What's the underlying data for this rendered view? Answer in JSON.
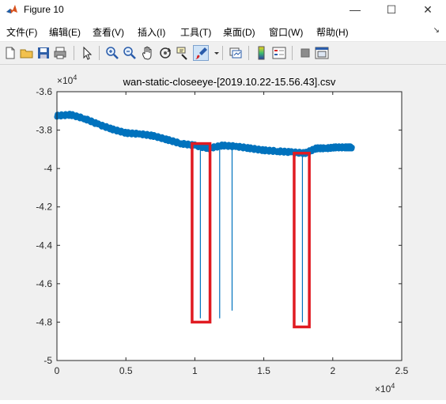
{
  "window": {
    "title": "Figure 10",
    "controls": {
      "minimize": "—",
      "maximize": "☐",
      "close": "✕"
    }
  },
  "menu": {
    "items": [
      "文件(F)",
      "编辑(E)",
      "查看(V)",
      "插入(I)",
      "工具(T)",
      "桌面(D)",
      "窗口(W)",
      "帮助(H)"
    ],
    "overflow_icon": "chevron-icon"
  },
  "toolbar": {
    "icons": [
      "new-figure-icon",
      "open-file-icon",
      "save-icon",
      "print-icon",
      "edit-plot-arrow-icon",
      "zoom-in-icon",
      "zoom-out-icon",
      "pan-hand-icon",
      "rotate-3d-icon",
      "data-cursor-icon",
      "brush-icon",
      "brush-dropdown-icon",
      "link-plot-icon",
      "colorbar-icon",
      "legend-icon",
      "hide-plot-tools-icon",
      "show-plot-tools-icon"
    ]
  },
  "chart_data": {
    "type": "line",
    "title": "wan-static-closeeye-[2019.10.22-15.56.43].csv",
    "xlabel": "",
    "ylabel": "",
    "x_exponent_label": "×10",
    "x_exponent": "4",
    "y_exponent_label": "×10",
    "y_exponent": "4",
    "xlim": [
      0,
      25000
    ],
    "ylim": [
      -50000,
      -36000
    ],
    "xticks": [
      0,
      5000,
      10000,
      15000,
      20000,
      25000
    ],
    "xtick_labels": [
      "0",
      "0.5",
      "1",
      "1.5",
      "2",
      "2.5"
    ],
    "yticks": [
      -36000,
      -38000,
      -40000,
      -42000,
      -44000,
      -46000,
      -48000,
      -50000
    ],
    "ytick_labels": [
      "-3.6",
      "-3.8",
      "-4",
      "-4.2",
      "-4.4",
      "-4.6",
      "-4.8",
      "-5"
    ],
    "grid": false,
    "series": [
      {
        "color": "#0072BD",
        "baseline_x": [
          0,
          1000,
          2000,
          3000,
          4000,
          5000,
          6000,
          7000,
          8000,
          9000,
          10000,
          11000,
          12000,
          13000,
          14000,
          15000,
          16000,
          17000,
          18000,
          18800,
          19500,
          20200,
          21000,
          21400
        ],
        "baseline_y": [
          -37250,
          -37200,
          -37400,
          -37700,
          -37950,
          -38150,
          -38200,
          -38300,
          -38500,
          -38700,
          -38800,
          -38950,
          -38800,
          -38850,
          -38950,
          -39050,
          -39100,
          -39150,
          -39200,
          -38950,
          -38950,
          -38900,
          -38900,
          -38900
        ]
      }
    ],
    "spikes": [
      {
        "x": 10400,
        "y_top": -38900,
        "y_bottom": -47800
      },
      {
        "x": 11800,
        "y_top": -38900,
        "y_bottom": -47800
      },
      {
        "x": 12700,
        "y_top": -38900,
        "y_bottom": -47400
      },
      {
        "x": 17800,
        "y_top": -39100,
        "y_bottom": -48000
      }
    ],
    "annotations": [
      {
        "type": "rectangle",
        "color": "#e01b22",
        "x0": 9800,
        "x1": 11100,
        "y_top": -38700,
        "y_bottom": -48000
      },
      {
        "type": "rectangle",
        "color": "#e01b22",
        "x0": 17200,
        "x1": 18300,
        "y_top": -39200,
        "y_bottom": -48250
      }
    ]
  }
}
